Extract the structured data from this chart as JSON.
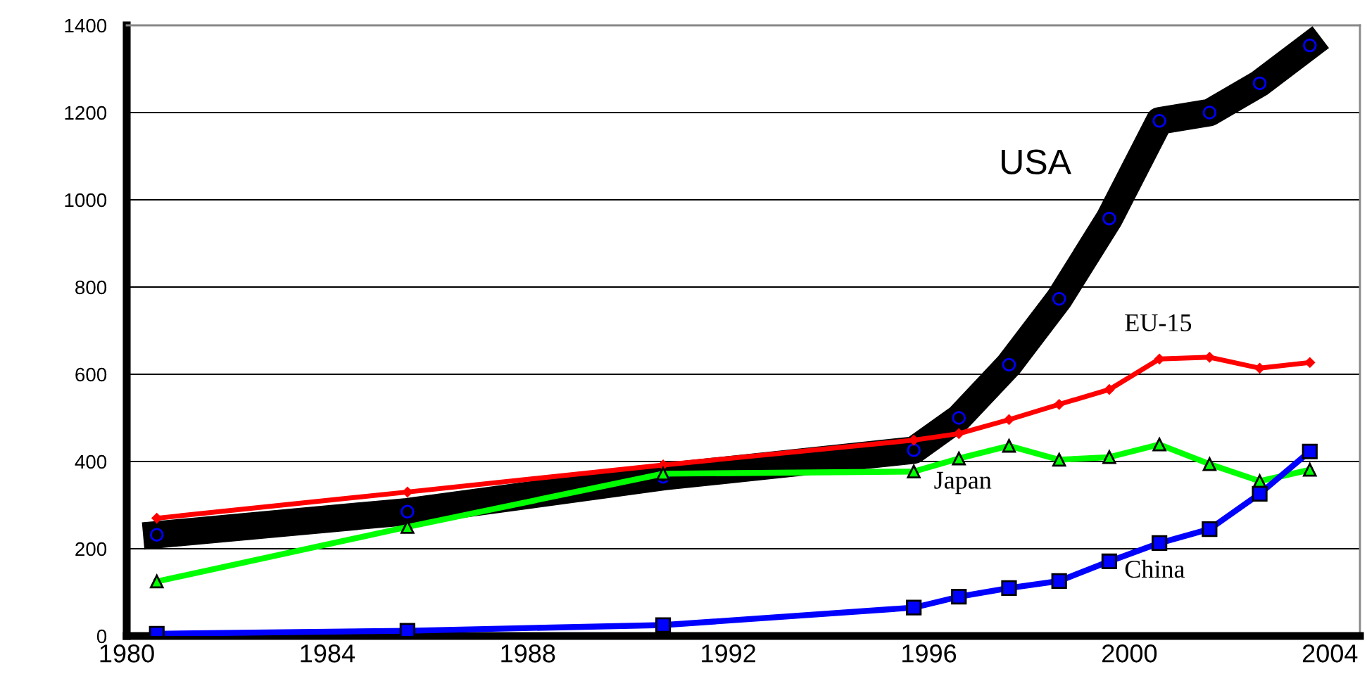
{
  "chart_data": {
    "type": "line",
    "x": [
      1980.6,
      1985.6,
      1990.7,
      1995.7,
      1996.6,
      1997.6,
      1998.6,
      1999.6,
      2000.6,
      2001.6,
      2002.6,
      2003.6
    ],
    "series": [
      {
        "name": "USA",
        "color": "#000000",
        "marker": "circle",
        "values": [
          232,
          285,
          365,
          426,
          500,
          622,
          773,
          957,
          1181,
          1200,
          1267,
          1354
        ]
      },
      {
        "name": "EU-15",
        "color": "#ff0000",
        "marker": "diamond",
        "values": [
          270,
          330,
          392,
          449,
          464,
          496,
          531,
          565,
          635,
          639,
          614,
          627
        ]
      },
      {
        "name": "Japan",
        "color": "#00ff00",
        "marker": "triangle",
        "values": [
          125,
          250,
          372,
          377,
          407,
          436,
          404,
          410,
          439,
          394,
          355,
          381
        ]
      },
      {
        "name": "China",
        "color": "#0000ff",
        "marker": "square",
        "values": [
          5,
          12,
          25,
          65,
          90,
          110,
          126,
          171,
          213,
          245,
          326,
          423
        ]
      }
    ],
    "xlim": [
      1980,
      2004.6
    ],
    "xticks": [
      1980,
      1984,
      1988,
      1992,
      1996,
      2000,
      2004
    ],
    "ylim": [
      0,
      1400
    ],
    "yticks": [
      0,
      200,
      400,
      600,
      800,
      1000,
      1200,
      1400
    ],
    "grid": "y",
    "legend": false,
    "line_style": "solid"
  }
}
